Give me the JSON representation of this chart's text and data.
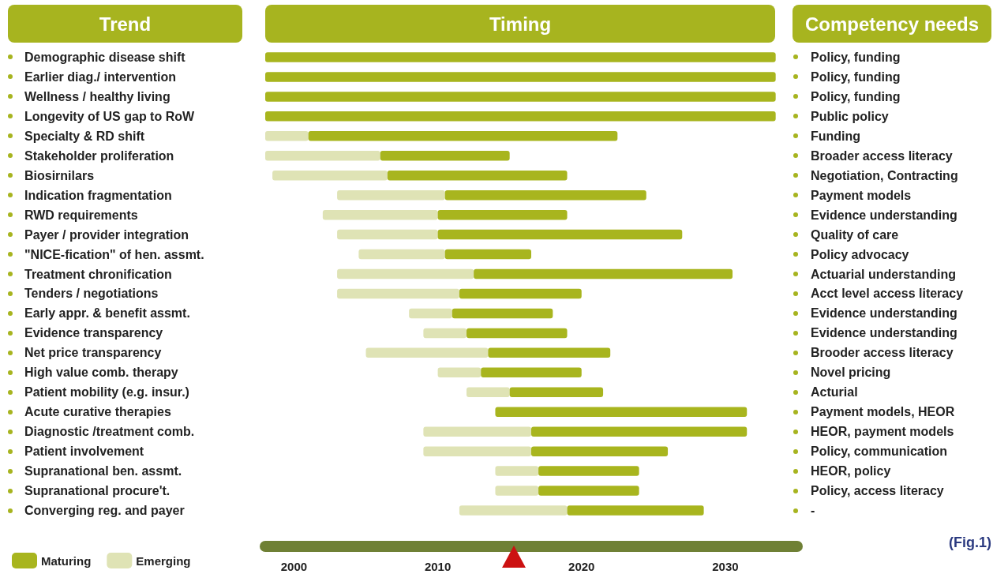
{
  "chart_data": {
    "type": "bar",
    "orientation": "horizontal",
    "title": "Timing",
    "ylabel": "Trend",
    "y2label": "Competency needs",
    "categories": [
      "Demographic disease shift",
      "Earlier diag./ intervention",
      "Wellness / healthy living",
      "Longevity of US gap to RoW",
      "Specialty & RD shift",
      "Stakeholder proliferation",
      "Biosirnilars",
      "Indication fragmentation",
      "RWD requirements",
      "Payer / provider integration",
      "\"NICE-fication\" of hen. assmt.",
      "Treatment chronification",
      "Tenders / negotiations",
      "Early appr. & benefit assmt.",
      "Evidence transparency",
      "Net price transparency",
      "High value comb. therapy",
      "Patient mobility (e.g. insur.)",
      "Acute curative therapies",
      "Diagnostic /treatment comb.",
      "Patient involvement",
      "Supranational ben. assmt.",
      "Supranational procure't.",
      "Converging reg. and payer"
    ],
    "y2_categories": [
      "Policy, funding",
      "Policy, funding",
      "Policy, funding",
      "Public policy",
      "Funding",
      "Broader access literacy",
      "Negotiation, Contracting",
      "Payment models",
      "Evidence understanding",
      "Quality of care",
      "Policy advocacy",
      "Actuarial understanding",
      "Acct level access literacy",
      "Evidence understanding",
      "Evidence understanding",
      "Brooder access literacy",
      "Novel pricing",
      "Acturial",
      "Payment models, HEOR",
      "HEOR, payment models",
      "Policy, communication",
      "HEOR, policy",
      "Policy, access literacy",
      "-"
    ],
    "series": [
      {
        "name": "Emerging",
        "color": "#dfe3b5",
        "base": [
          null,
          null,
          null,
          null,
          1998,
          1998,
          1998.5,
          2003,
          2002,
          2003,
          2004.5,
          2003,
          2003,
          2008,
          2009,
          2005,
          2010,
          2012,
          null,
          2009,
          2009,
          2014,
          2014,
          2011.5
        ],
        "values": [
          null,
          null,
          null,
          null,
          3,
          8,
          8,
          7.5,
          8,
          7,
          6,
          9.5,
          8.5,
          3,
          3,
          8.5,
          3,
          3,
          null,
          7.5,
          7.5,
          3,
          3,
          7.5
        ]
      },
      {
        "name": "Maturing",
        "color": "#a8b51e",
        "base": [
          1998,
          1998,
          1998,
          1998,
          2001,
          2006,
          2006.5,
          2010.5,
          2010,
          2010,
          2010.5,
          2012.5,
          2011.5,
          2011,
          2012,
          2013.5,
          2013,
          2015,
          2014,
          2016.5,
          2016.5,
          2017,
          2017,
          2019
        ],
        "values": [
          35.5,
          35.5,
          35.5,
          35.5,
          21.5,
          9,
          12.5,
          14,
          9,
          17,
          6,
          18,
          8.5,
          7,
          7,
          8.5,
          7,
          6.5,
          17.5,
          15,
          9.5,
          7,
          7,
          9.5
        ]
      }
    ],
    "xlim": [
      1998,
      2035
    ],
    "xticks": [
      2000,
      2010,
      2020,
      2030
    ],
    "annotations": [
      "(Fig.1)"
    ],
    "legend": "bottom left",
    "grid": false
  }
}
